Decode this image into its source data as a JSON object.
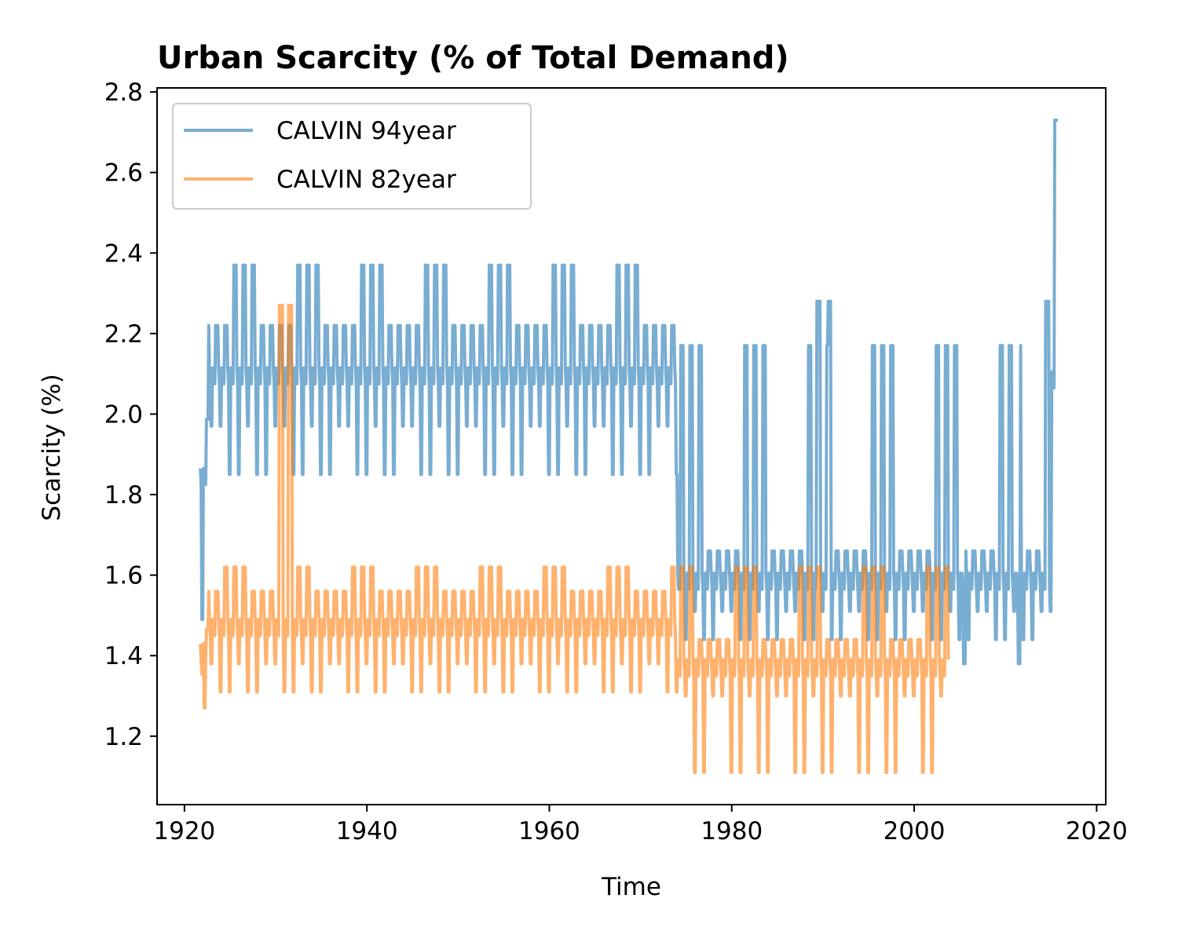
{
  "chart_data": {
    "type": "line",
    "title": "Urban Scarcity (% of Total Demand)",
    "xlabel": "Time",
    "ylabel": "Scarcity (%)",
    "xlim": [
      1917,
      2021
    ],
    "ylim": [
      1.03,
      2.81
    ],
    "xticks": [
      "1920",
      "1940",
      "1960",
      "1980",
      "2000",
      "2020"
    ],
    "yticks": [
      "1.2",
      "1.4",
      "1.6",
      "1.8",
      "2.0",
      "2.2",
      "2.4",
      "2.6",
      "2.8"
    ],
    "grid": false,
    "legend_position": "top-left",
    "series": [
      {
        "name": "CALVIN 94year",
        "color": "#1f77b4",
        "alpha": 0.6,
        "start_year": 1921.75,
        "end_year": 2015.75,
        "envelope": [
          {
            "from": 1921.75,
            "to": 1922.6,
            "low": 1.49,
            "high": 2.2
          },
          {
            "from": 1922.6,
            "to": 1974.0,
            "low": 1.85,
            "high": 2.37,
            "mid_low": 1.97,
            "mid_high": 2.22
          },
          {
            "from": 1974.0,
            "to": 2015.0,
            "low": 1.44,
            "high": 2.17,
            "mid_low": 1.51,
            "mid_high": 1.66
          },
          {
            "from": 2015.0,
            "to": 2015.75,
            "low": 1.44,
            "high": 2.73
          }
        ],
        "notable_peaks": [
          {
            "x": 1989.5,
            "y": 2.28
          },
          {
            "x": 1990.7,
            "y": 2.28
          },
          {
            "x": 2014.6,
            "y": 2.28
          },
          {
            "x": 2015.6,
            "y": 2.73
          }
        ],
        "notable_troughs": [
          {
            "x": 2005.5,
            "y": 1.38
          },
          {
            "x": 2011.5,
            "y": 1.38
          }
        ]
      },
      {
        "name": "CALVIN 82year",
        "color": "#ff7f0e",
        "alpha": 0.6,
        "start_year": 1921.75,
        "end_year": 2003.75,
        "envelope": [
          {
            "from": 1921.75,
            "to": 1922.6,
            "low": 1.27,
            "high": 1.55
          },
          {
            "from": 1922.6,
            "to": 1974.0,
            "low": 1.31,
            "high": 1.62,
            "mid_low": 1.38,
            "mid_high": 1.56
          },
          {
            "from": 1974.0,
            "to": 2003.75,
            "low": 1.11,
            "high": 1.62,
            "mid_low": 1.3,
            "mid_high": 1.44
          }
        ],
        "notable_peaks": [
          {
            "x": 1930.6,
            "y": 2.27
          },
          {
            "x": 1931.6,
            "y": 2.27
          }
        ],
        "notable_troughs": [
          {
            "x": 1922.2,
            "y": 1.27
          }
        ]
      }
    ]
  }
}
